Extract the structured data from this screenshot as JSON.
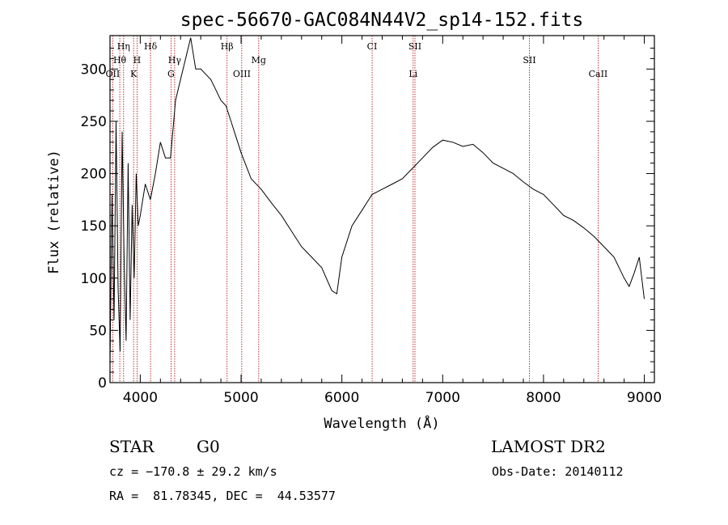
{
  "chart_data": {
    "type": "line",
    "title": "spec-56670-GAC084N44V2_sp14-152.fits",
    "xlabel": "Wavelength (Å)",
    "ylabel": "Flux (relative)",
    "xlim": [
      3700,
      9100
    ],
    "ylim": [
      0,
      332
    ],
    "grid": false,
    "x_ticks": [
      4000,
      5000,
      6000,
      7000,
      8000,
      9000
    ],
    "y_ticks": [
      0,
      50,
      100,
      150,
      200,
      250,
      300
    ],
    "series": [
      {
        "x": [
          3700,
          3720,
          3740,
          3760,
          3780,
          3800,
          3820,
          3840,
          3860,
          3880,
          3900,
          3920,
          3940,
          3960,
          3980,
          4000,
          4050,
          4100,
          4150,
          4200,
          4250,
          4300,
          4350,
          4400,
          4450,
          4500,
          4550,
          4600,
          4650,
          4700,
          4750,
          4800,
          4850,
          4900,
          4950,
          5000,
          5100,
          5200,
          5300,
          5400,
          5500,
          5600,
          5700,
          5800,
          5900,
          5950,
          6000,
          6100,
          6200,
          6300,
          6400,
          6500,
          6600,
          6700,
          6800,
          6900,
          7000,
          7100,
          7200,
          7300,
          7400,
          7500,
          7600,
          7700,
          7800,
          7900,
          8000,
          8100,
          8200,
          8300,
          8400,
          8500,
          8600,
          8700,
          8800,
          8850,
          8900,
          8950,
          9000
        ],
        "y": [
          20,
          180,
          60,
          250,
          90,
          30,
          240,
          120,
          40,
          210,
          60,
          170,
          100,
          200,
          150,
          160,
          190,
          175,
          200,
          230,
          215,
          215,
          270,
          290,
          310,
          330,
          300,
          300,
          295,
          290,
          280,
          270,
          265,
          250,
          235,
          220,
          195,
          185,
          172,
          160,
          145,
          130,
          120,
          110,
          88,
          85,
          120,
          150,
          165,
          180,
          185,
          190,
          195,
          205,
          215,
          225,
          232,
          230,
          226,
          228,
          220,
          210,
          205,
          200,
          192,
          185,
          180,
          170,
          160,
          155,
          148,
          140,
          130,
          120,
          100,
          92,
          105,
          120,
          80
        ]
      }
    ],
    "spectral_lines": [
      {
        "name": "Hη",
        "x": 3835,
        "row": 0
      },
      {
        "name": "Hθ",
        "x": 3797,
        "row": 1
      },
      {
        "name": "OII",
        "x": 3727,
        "row": 2
      },
      {
        "name": "H",
        "x": 3968,
        "row": 1
      },
      {
        "name": "K",
        "x": 3934,
        "row": 2
      },
      {
        "name": "Hδ",
        "x": 4102,
        "row": 0
      },
      {
        "name": "Hγ",
        "x": 4341,
        "row": 1
      },
      {
        "name": "G",
        "x": 4305,
        "row": 2
      },
      {
        "name": "Hβ",
        "x": 4861,
        "row": 0
      },
      {
        "name": "OIII",
        "x": 5007,
        "row": 2
      },
      {
        "name": "Mg",
        "x": 5175,
        "row": 1
      },
      {
        "name": "CI",
        "x": 6300,
        "row": 0
      },
      {
        "name": "SII",
        "x": 6725,
        "row": 0
      },
      {
        "name": "Li",
        "x": 6707,
        "row": 2
      },
      {
        "name": "SII",
        "x": 7860,
        "row": 1
      },
      {
        "name": "CaII",
        "x": 8542,
        "row": 2
      }
    ],
    "colors": {
      "spectrum": "#000000",
      "lines": "#b00000"
    }
  },
  "info": {
    "class": "STAR",
    "subclass": "G0",
    "survey": "LAMOST DR2",
    "cz": "cz = −170.8 ± 29.2 km/s",
    "obs_date": "Obs-Date: 20140112",
    "coords": "RA =  81.78345, DEC =  44.53577"
  }
}
